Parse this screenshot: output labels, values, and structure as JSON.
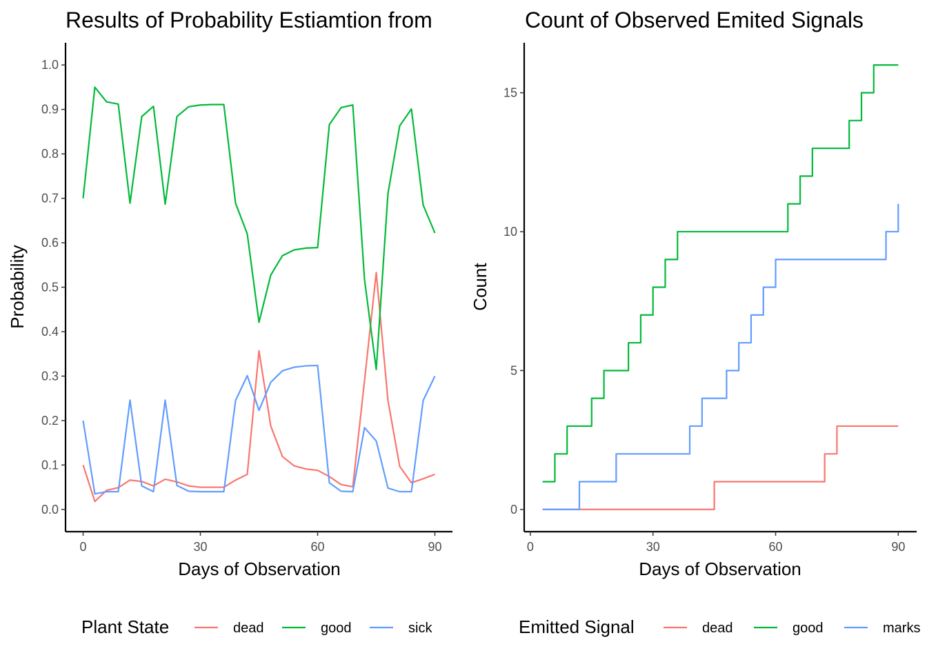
{
  "chart_data": [
    {
      "type": "line",
      "title": "Results of Probability Estiamtion from",
      "xlabel": "Days of Observation",
      "ylabel": "Probability",
      "xlim": [
        -4.5,
        94.5
      ],
      "ylim": [
        -0.05,
        1.05
      ],
      "x_ticks": [
        0,
        30,
        60,
        90
      ],
      "x_tick_labels": [
        "0",
        "30",
        "60",
        "90"
      ],
      "y_ticks": [
        0.0,
        0.1,
        0.2,
        0.3,
        0.4,
        0.5,
        0.6,
        0.7,
        0.8,
        0.9,
        1.0
      ],
      "y_tick_labels": [
        "0.0",
        "0.1",
        "0.2",
        "0.3",
        "0.4",
        "0.5",
        "0.6",
        "0.7",
        "0.8",
        "0.9",
        "1.0"
      ],
      "grid": false,
      "legend": {
        "title": "Plant State",
        "placement": "bottom"
      },
      "x": [
        0,
        3,
        6,
        9,
        12,
        15,
        18,
        21,
        24,
        27,
        30,
        33,
        36,
        39,
        42,
        45,
        48,
        51,
        54,
        57,
        60,
        63,
        66,
        69,
        72,
        75,
        78,
        81,
        84,
        87,
        90
      ],
      "series": [
        {
          "name": "dead",
          "color": "#F8766D",
          "values": [
            0.1,
            0.018,
            0.043,
            0.049,
            0.066,
            0.063,
            0.053,
            0.068,
            0.062,
            0.053,
            0.05,
            0.05,
            0.05,
            0.066,
            0.079,
            0.357,
            0.188,
            0.119,
            0.098,
            0.091,
            0.088,
            0.074,
            0.056,
            0.051,
            0.29,
            0.533,
            0.245,
            0.097,
            0.06,
            0.069,
            0.079
          ]
        },
        {
          "name": "good",
          "color": "#00BA38",
          "values": [
            0.7,
            0.95,
            0.917,
            0.912,
            0.689,
            0.884,
            0.907,
            0.687,
            0.884,
            0.906,
            0.91,
            0.911,
            0.911,
            0.689,
            0.62,
            0.421,
            0.527,
            0.571,
            0.584,
            0.588,
            0.589,
            0.866,
            0.904,
            0.91,
            0.517,
            0.315,
            0.711,
            0.863,
            0.901,
            0.685,
            0.622
          ]
        },
        {
          "name": "sick",
          "color": "#619CFF",
          "values": [
            0.2,
            0.035,
            0.04,
            0.04,
            0.246,
            0.053,
            0.04,
            0.246,
            0.054,
            0.041,
            0.04,
            0.04,
            0.04,
            0.245,
            0.301,
            0.223,
            0.286,
            0.312,
            0.32,
            0.323,
            0.324,
            0.06,
            0.041,
            0.04,
            0.184,
            0.154,
            0.048,
            0.04,
            0.04,
            0.245,
            0.3
          ]
        }
      ]
    },
    {
      "type": "line",
      "step": true,
      "title": "Count of Observed Emited Signals",
      "xlabel": "Days of Observation",
      "ylabel": "Count",
      "xlim": [
        -1.5,
        94.5
      ],
      "ylim": [
        -0.8,
        16.8
      ],
      "x_ticks": [
        0,
        30,
        60,
        90
      ],
      "x_tick_labels": [
        "0",
        "30",
        "60",
        "90"
      ],
      "y_ticks": [
        0,
        5,
        10,
        15
      ],
      "y_tick_labels": [
        "0",
        "5",
        "10",
        "15"
      ],
      "grid": false,
      "legend": {
        "title": "Emitted Signal",
        "placement": "bottom"
      },
      "x": [
        3,
        6,
        9,
        12,
        15,
        18,
        21,
        24,
        27,
        30,
        33,
        36,
        39,
        42,
        45,
        48,
        51,
        54,
        57,
        60,
        63,
        66,
        69,
        72,
        75,
        78,
        81,
        84,
        87,
        90
      ],
      "series": [
        {
          "name": "dead",
          "color": "#F8766D",
          "values": [
            0,
            0,
            0,
            0,
            0,
            0,
            0,
            0,
            0,
            0,
            0,
            0,
            0,
            0,
            1,
            1,
            1,
            1,
            1,
            1,
            1,
            1,
            1,
            2,
            3,
            3,
            3,
            3,
            3,
            3
          ]
        },
        {
          "name": "good",
          "color": "#00BA38",
          "values": [
            1,
            2,
            3,
            3,
            4,
            5,
            5,
            6,
            7,
            8,
            9,
            10,
            10,
            10,
            10,
            10,
            10,
            10,
            10,
            10,
            11,
            12,
            13,
            13,
            13,
            14,
            15,
            16,
            16,
            16
          ]
        },
        {
          "name": "marks",
          "color": "#619CFF",
          "values": [
            0,
            0,
            0,
            1,
            1,
            1,
            2,
            2,
            2,
            2,
            2,
            2,
            3,
            4,
            4,
            5,
            6,
            7,
            8,
            9,
            9,
            9,
            9,
            9,
            9,
            9,
            9,
            9,
            10,
            11
          ]
        }
      ]
    }
  ]
}
